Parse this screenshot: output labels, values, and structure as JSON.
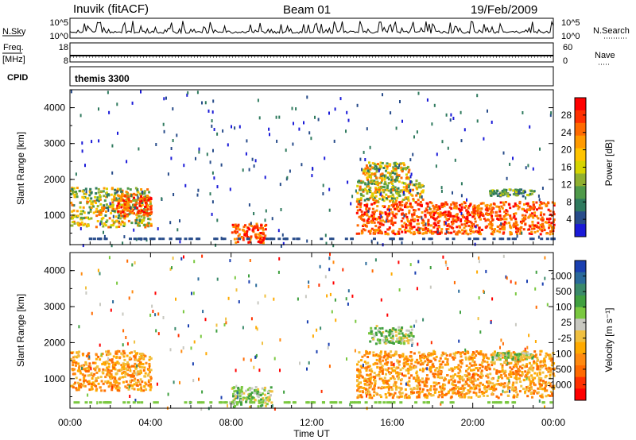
{
  "header": {
    "station": "Inuvik (fitACF)",
    "beam": "Beam 01",
    "date": "19/Feb/2009"
  },
  "labels": {
    "nsky": "N.Sky",
    "freq": "Freq.",
    "freq_unit": "[MHz]",
    "cpid": "CPID",
    "nsearch": "N.Search",
    "nave": "Nave",
    "cpid_value": "themis 3300",
    "ylabel": "Slant Range [km]",
    "xlabel": "Time UT",
    "power_label": "Power [dB]",
    "velocity_label": "Velocity [m s⁻¹]"
  },
  "axes": {
    "nsky_ticks": [
      "10^5",
      "10^0"
    ],
    "nsearch_ticks": [
      "10^5",
      "10^0"
    ],
    "freq_ticks": [
      "18",
      "8"
    ],
    "nave_ticks": [
      "60",
      "0"
    ],
    "range_ticks": [
      "4000",
      "3000",
      "2000",
      "1000"
    ],
    "time_ticks": [
      "00:00",
      "04:00",
      "08:00",
      "12:00",
      "16:00",
      "20:00",
      "00:00"
    ]
  },
  "chart_data": [
    {
      "type": "heatmap",
      "title": "Power",
      "xlabel": "Time UT",
      "ylabel": "Slant Range [km]",
      "xlim": [
        "00:00",
        "24:00"
      ],
      "ylim": [
        180,
        4500
      ],
      "colorbar": {
        "label": "Power [dB]",
        "ticks": [
          "28",
          "24",
          "20",
          "16",
          "12",
          "8",
          "4"
        ],
        "colors": [
          "#ff0000",
          "#ff3000",
          "#ff6a00",
          "#ff9a00",
          "#ffc400",
          "#d6d400",
          "#90b030",
          "#4f9a4a",
          "#2f7a5e",
          "#284c8a",
          "#1a1ad8"
        ]
      },
      "regions": [
        {
          "t": [
            0.0,
            4.0
          ],
          "r": [
            700,
            1800
          ],
          "level": "mid"
        },
        {
          "t": [
            2.3,
            4.0
          ],
          "r": [
            1000,
            1600
          ],
          "level": "high"
        },
        {
          "t": [
            8.0,
            9.7
          ],
          "r": [
            250,
            800
          ],
          "level": "high"
        },
        {
          "t": [
            14.2,
            24.0
          ],
          "r": [
            500,
            1400
          ],
          "level": "high"
        },
        {
          "t": [
            14.2,
            17.5
          ],
          "r": [
            1400,
            2000
          ],
          "level": "mid"
        },
        {
          "t": [
            14.5,
            16.8
          ],
          "r": [
            2000,
            2500
          ],
          "level": "mid"
        },
        {
          "t": [
            20.8,
            23.0
          ],
          "r": [
            1550,
            1750
          ],
          "level": "low"
        }
      ]
    },
    {
      "type": "heatmap",
      "title": "Velocity",
      "xlabel": "Time UT",
      "ylabel": "Slant Range [km]",
      "xlim": [
        "00:00",
        "24:00"
      ],
      "ylim": [
        180,
        4500
      ],
      "colorbar": {
        "label": "Velocity [m s⁻¹]",
        "ticks": [
          "1000",
          "500",
          "100",
          "25",
          "-25",
          "-100",
          "-500",
          "-1000"
        ],
        "colors": [
          "#1a3fb0",
          "#2a6a9a",
          "#3a8a6a",
          "#40a040",
          "#7ac840",
          "#c8c8c0",
          "#f0c040",
          "#ffaa00",
          "#ff8a10",
          "#ff6a00",
          "#ff3000",
          "#ff0000"
        ]
      },
      "regions": [
        {
          "t": [
            0.0,
            4.0
          ],
          "r": [
            700,
            1800
          ],
          "level": "negative"
        },
        {
          "t": [
            8.0,
            10.0
          ],
          "r": [
            250,
            800
          ],
          "level": "near-zero"
        },
        {
          "t": [
            14.2,
            24.0
          ],
          "r": [
            500,
            1800
          ],
          "level": "negative"
        },
        {
          "t": [
            14.8,
            17.0
          ],
          "r": [
            2000,
            2500
          ],
          "level": "near-zero"
        },
        {
          "t": [
            20.8,
            23.0
          ],
          "r": [
            1550,
            1750
          ],
          "level": "near-zero"
        }
      ]
    }
  ]
}
